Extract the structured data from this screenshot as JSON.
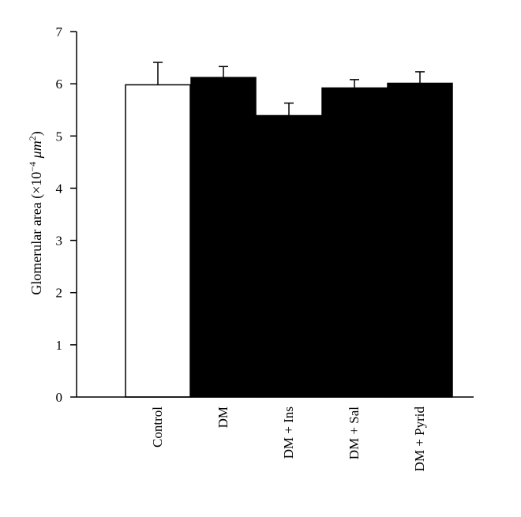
{
  "chart_data": {
    "type": "bar",
    "categories": [
      "Control",
      "DM",
      "DM + Ins",
      "DM + Sal",
      "DM + Pyrid"
    ],
    "values": [
      5.98,
      6.12,
      5.39,
      5.92,
      6.01
    ],
    "errors": [
      0.43,
      0.21,
      0.24,
      0.16,
      0.22
    ],
    "bar_fill": [
      "#ffffff",
      "#000000",
      "#000000",
      "#000000",
      "#000000"
    ],
    "ylabel": {
      "prefix": "Glomerular area (×10",
      "exponent": "−4",
      "unit": " μm",
      "unit_exponent": "2",
      "suffix": ")"
    },
    "yticks": [
      0,
      1,
      2,
      3,
      4,
      5,
      6,
      7
    ],
    "ylim": [
      0,
      7
    ],
    "grid": false,
    "legend": "none"
  }
}
